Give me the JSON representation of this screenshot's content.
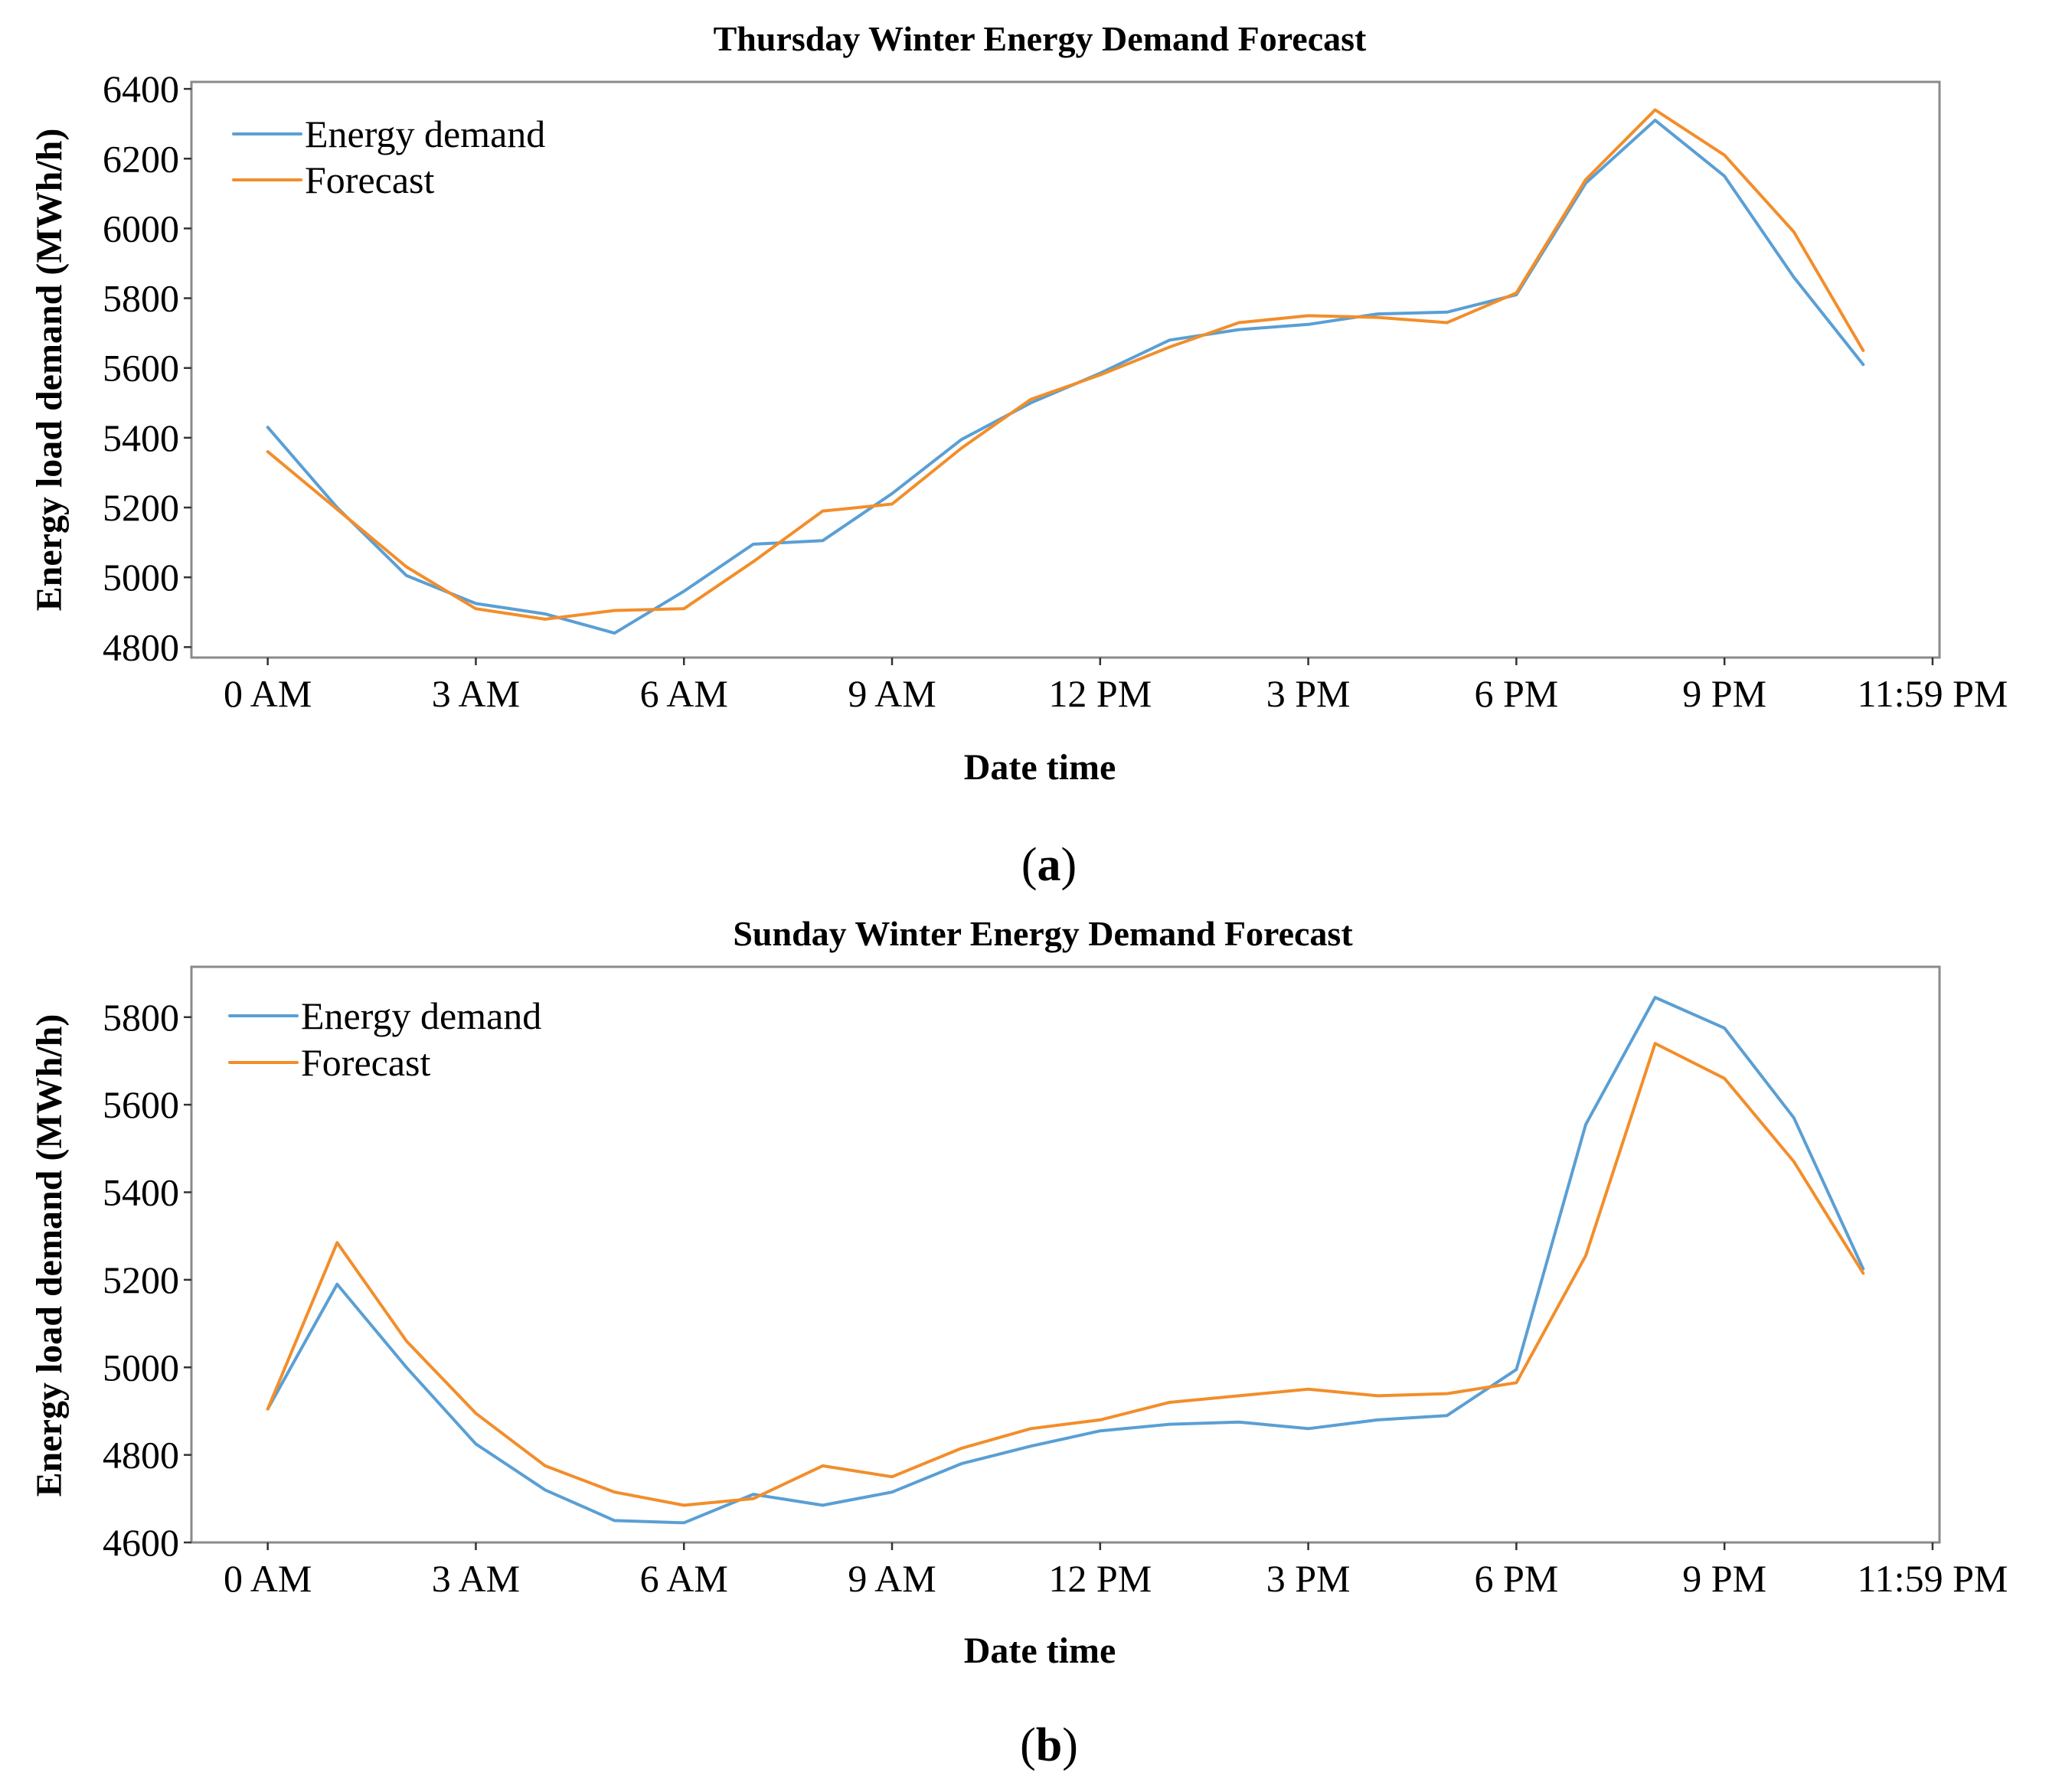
{
  "colors": {
    "demand": "#5a9fd4",
    "forecast": "#f28e2b",
    "frame": "#8a8a8a"
  },
  "panels": [
    {
      "caption_letter": "a"
    },
    {
      "caption_letter": "b"
    }
  ],
  "chart_data": [
    {
      "type": "line",
      "title": "Thursday Winter Energy Demand Forecast",
      "xlabel": "Date time",
      "ylabel": "Energy load demand (MWh/h)",
      "x_hours": [
        0,
        1,
        2,
        3,
        4,
        5,
        6,
        7,
        8,
        9,
        10,
        11,
        12,
        13,
        14,
        15,
        16,
        17,
        18,
        19,
        20,
        21,
        22,
        23
      ],
      "x_ticks": [
        0,
        3,
        6,
        9,
        12,
        15,
        18,
        21,
        24
      ],
      "x_tick_labels": [
        "0 AM",
        "3 AM",
        "6 AM",
        "9 AM",
        "12 PM",
        "3 PM",
        "6 PM",
        "9 PM",
        "11:59 PM"
      ],
      "xlim": [
        -1.1,
        24.1
      ],
      "ylim": [
        4770,
        6420
      ],
      "y_ticks": [
        4800,
        5000,
        5200,
        5400,
        5600,
        5800,
        6000,
        6200,
        6400
      ],
      "grid": false,
      "legend_position": "top-left",
      "series": [
        {
          "name": "Energy demand",
          "color": "#5a9fd4",
          "values": [
            5430,
            5200,
            5005,
            4925,
            4895,
            4840,
            4960,
            5095,
            5105,
            5240,
            5395,
            5500,
            5585,
            5680,
            5710,
            5725,
            5755,
            5760,
            5810,
            6130,
            6310,
            6150,
            5860,
            5610
          ]
        },
        {
          "name": "Forecast",
          "color": "#f28e2b",
          "values": [
            5360,
            5195,
            5030,
            4910,
            4880,
            4905,
            4910,
            5045,
            5190,
            5210,
            5370,
            5510,
            5580,
            5660,
            5730,
            5750,
            5745,
            5730,
            5815,
            6140,
            6340,
            6210,
            5990,
            5650
          ]
        }
      ]
    },
    {
      "type": "line",
      "title": "Sunday Winter Energy Demand Forecast",
      "xlabel": "Date time",
      "ylabel": "Energy load demand (MWh/h)",
      "x_hours": [
        0,
        1,
        2,
        3,
        4,
        5,
        6,
        7,
        8,
        9,
        10,
        11,
        12,
        13,
        14,
        15,
        16,
        17,
        18,
        19,
        20,
        21,
        22,
        23
      ],
      "x_ticks": [
        0,
        3,
        6,
        9,
        12,
        15,
        18,
        21,
        24
      ],
      "x_tick_labels": [
        "0 AM",
        "3 AM",
        "6 AM",
        "9 AM",
        "12 PM",
        "3 PM",
        "6 PM",
        "9 PM",
        "11:59 PM"
      ],
      "xlim": [
        -1.1,
        24.1
      ],
      "ylim": [
        4600,
        5915
      ],
      "y_ticks": [
        4600,
        4800,
        5000,
        5200,
        5400,
        5600,
        5800
      ],
      "grid": false,
      "legend_position": "top-left",
      "series": [
        {
          "name": "Energy demand",
          "color": "#5a9fd4",
          "values": [
            4905,
            5190,
            5000,
            4825,
            4720,
            4650,
            4645,
            4710,
            4685,
            4715,
            4780,
            4820,
            4855,
            4870,
            4875,
            4860,
            4880,
            4890,
            4995,
            5555,
            5845,
            5775,
            5570,
            5225
          ]
        },
        {
          "name": "Forecast",
          "color": "#f28e2b",
          "values": [
            4905,
            5285,
            5060,
            4895,
            4775,
            4715,
            4685,
            4700,
            4775,
            4750,
            4815,
            4860,
            4880,
            4920,
            4935,
            4950,
            4935,
            4940,
            4965,
            5255,
            5740,
            5660,
            5470,
            5215
          ]
        }
      ]
    }
  ]
}
